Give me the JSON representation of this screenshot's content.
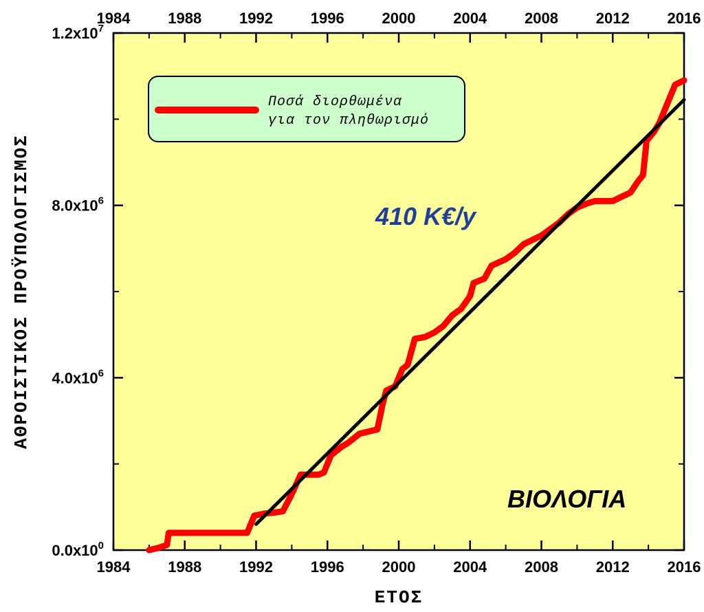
{
  "chart_data": {
    "type": "line",
    "xlabel": "ΕΤΟΣ",
    "ylabel": "ΑΘΡΟΙΣΤΙΚΟΣ ΠΡΟΫΠΟΛΟΓΙΣΜΟΣ",
    "xlim": [
      1984,
      2016
    ],
    "ylim": [
      0,
      12000000
    ],
    "x_ticks": [
      1984,
      1988,
      1992,
      1996,
      2000,
      2004,
      2008,
      2012,
      2016
    ],
    "y_ticks": [
      {
        "value": 0,
        "base": "0.0x10",
        "exp": "0"
      },
      {
        "value": 4000000,
        "base": "4.0x10",
        "exp": "6"
      },
      {
        "value": 8000000,
        "base": "8.0x10",
        "exp": "6"
      },
      {
        "value": 12000000,
        "base": "1.2x10",
        "exp": "7"
      }
    ],
    "background_color": "#FFFF99",
    "grid": false,
    "legend": {
      "position": "top-left",
      "lines": [
        "Ποσά διορθωμένα",
        "για τον πληθωρισμό"
      ],
      "background": "#CCFFCC"
    },
    "annotations": {
      "rate": "410 K€/y",
      "rate_color": "#1F3F99",
      "field": "ΒΙΟΛΟΓΙΑ"
    },
    "series": [
      {
        "name": "Ποσά διορθωμένα για τον πληθωρισμό",
        "color": "#FF0000",
        "points": [
          [
            1986.0,
            0
          ],
          [
            1986.5,
            50000
          ],
          [
            1987.0,
            120000
          ],
          [
            1987.1,
            400000
          ],
          [
            1991.5,
            400000
          ],
          [
            1991.9,
            800000
          ],
          [
            1992.5,
            850000
          ],
          [
            1993.0,
            870000
          ],
          [
            1993.5,
            900000
          ],
          [
            1994.0,
            1300000
          ],
          [
            1994.5,
            1750000
          ],
          [
            1995.5,
            1750000
          ],
          [
            1995.8,
            1800000
          ],
          [
            1996.2,
            2200000
          ],
          [
            1996.8,
            2400000
          ],
          [
            1997.2,
            2500000
          ],
          [
            1997.8,
            2700000
          ],
          [
            1998.8,
            2800000
          ],
          [
            1999.1,
            3400000
          ],
          [
            1999.3,
            3700000
          ],
          [
            1999.8,
            3800000
          ],
          [
            2000.2,
            4200000
          ],
          [
            2000.5,
            4300000
          ],
          [
            2000.9,
            4900000
          ],
          [
            2001.5,
            4950000
          ],
          [
            2002.0,
            5050000
          ],
          [
            2002.5,
            5200000
          ],
          [
            2003.0,
            5450000
          ],
          [
            2003.5,
            5600000
          ],
          [
            2004.0,
            5900000
          ],
          [
            2004.2,
            6200000
          ],
          [
            2004.8,
            6300000
          ],
          [
            2005.2,
            6600000
          ],
          [
            2006.0,
            6750000
          ],
          [
            2006.5,
            6900000
          ],
          [
            2007.0,
            7100000
          ],
          [
            2007.5,
            7200000
          ],
          [
            2008.0,
            7300000
          ],
          [
            2008.5,
            7450000
          ],
          [
            2009.0,
            7600000
          ],
          [
            2009.5,
            7800000
          ],
          [
            2010.0,
            7950000
          ],
          [
            2010.6,
            8050000
          ],
          [
            2011.0,
            8100000
          ],
          [
            2012.0,
            8100000
          ],
          [
            2012.5,
            8200000
          ],
          [
            2013.0,
            8300000
          ],
          [
            2013.4,
            8550000
          ],
          [
            2013.7,
            8700000
          ],
          [
            2013.9,
            9500000
          ],
          [
            2014.3,
            9700000
          ],
          [
            2014.6,
            9900000
          ],
          [
            2015.0,
            10300000
          ],
          [
            2015.5,
            10800000
          ],
          [
            2016.0,
            10900000
          ]
        ]
      },
      {
        "type": "fit",
        "color": "#000000",
        "points": [
          [
            1992.0,
            600000
          ],
          [
            2016.0,
            10450000
          ]
        ]
      }
    ]
  }
}
